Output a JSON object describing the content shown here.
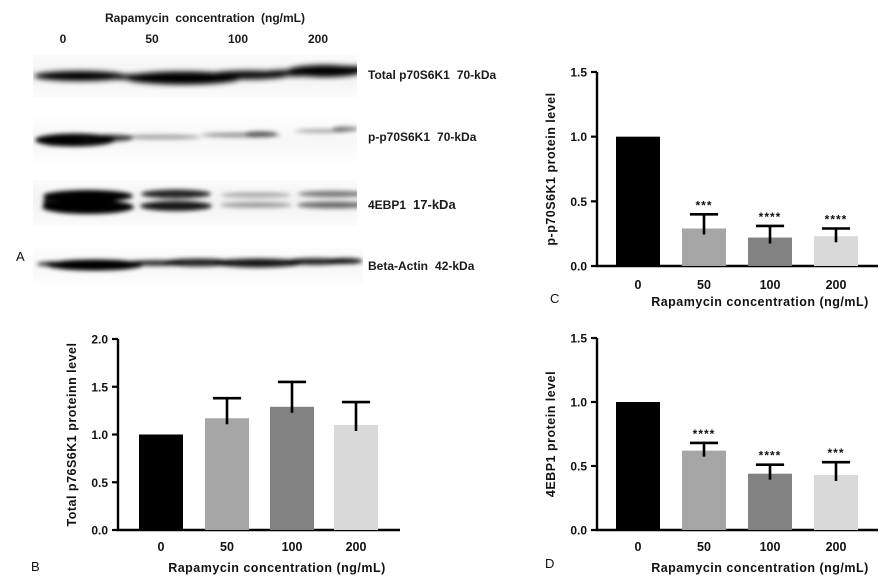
{
  "figure": {
    "background": "#ffffff"
  },
  "panel_a": {
    "letter": "A",
    "header": "Rapamycin concentration (ng/mL)",
    "lane_labels": [
      "0",
      "50",
      "100",
      "200"
    ],
    "blots": [
      {
        "name": "Total p70S6K1",
        "kda": "70-kDa",
        "band_pattern": "strong band in all four lanes"
      },
      {
        "name": "p-p70S6K1",
        "kda": "70-kDa",
        "band_pattern": "strong band at 0, faint bands at 50/100/200"
      },
      {
        "name": "4EBP1",
        "kda": "17-kDa",
        "band_pattern": "dark doublet at 0, fading doublets at 50/100/200"
      },
      {
        "name": "Beta-Actin",
        "kda": "42-kDa",
        "band_pattern": "uniform loading-control band across lanes"
      }
    ]
  },
  "chart_data": [
    {
      "panel_letter": "B",
      "type": "bar",
      "title": "",
      "categories": [
        "0",
        "50",
        "100",
        "200"
      ],
      "values": [
        1.0,
        1.17,
        1.29,
        1.1
      ],
      "errors_up": [
        0,
        0.21,
        0.26,
        0.24
      ],
      "significance": [
        "",
        "",
        "",
        ""
      ],
      "xlabel": "Rapamycin concentration (ng/mL)",
      "ylabel": "Total p76S6K1 proteinn level",
      "ylim": [
        0,
        2.0
      ],
      "ytick_step": 0.5,
      "grid": false,
      "legend": "none",
      "bar_colors": [
        "#000000",
        "#a6a6a6",
        "#828282",
        "#d9d9d9"
      ],
      "axis_color": "#000000",
      "error_bar_color": "#000000"
    },
    {
      "panel_letter": "C",
      "type": "bar",
      "title": "",
      "categories": [
        "0",
        "50",
        "100",
        "200"
      ],
      "values": [
        1.0,
        0.29,
        0.22,
        0.23
      ],
      "errors_up": [
        0,
        0.11,
        0.09,
        0.06
      ],
      "significance": [
        "",
        "***",
        "****",
        "****"
      ],
      "xlabel": "Rapamycin concentration (ng/mL)",
      "ylabel": "p-p70S6K1 protein level",
      "ylim": [
        0,
        1.5
      ],
      "ytick_step": 0.5,
      "grid": false,
      "legend": "none",
      "bar_colors": [
        "#000000",
        "#a6a6a6",
        "#828282",
        "#d9d9d9"
      ],
      "axis_color": "#000000",
      "error_bar_color": "#000000"
    },
    {
      "panel_letter": "D",
      "type": "bar",
      "title": "",
      "categories": [
        "0",
        "50",
        "100",
        "200"
      ],
      "values": [
        1.0,
        0.62,
        0.44,
        0.43
      ],
      "errors_up": [
        0,
        0.06,
        0.07,
        0.1
      ],
      "significance": [
        "",
        "****",
        "****",
        "***"
      ],
      "xlabel": "Rapamycin concentration (ng/mL)",
      "ylabel": "4EBP1 protein level",
      "ylim": [
        0,
        1.5
      ],
      "ytick_step": 0.5,
      "grid": false,
      "legend": "none",
      "bar_colors": [
        "#000000",
        "#a6a6a6",
        "#828282",
        "#d9d9d9"
      ],
      "axis_color": "#000000",
      "error_bar_color": "#000000"
    }
  ]
}
